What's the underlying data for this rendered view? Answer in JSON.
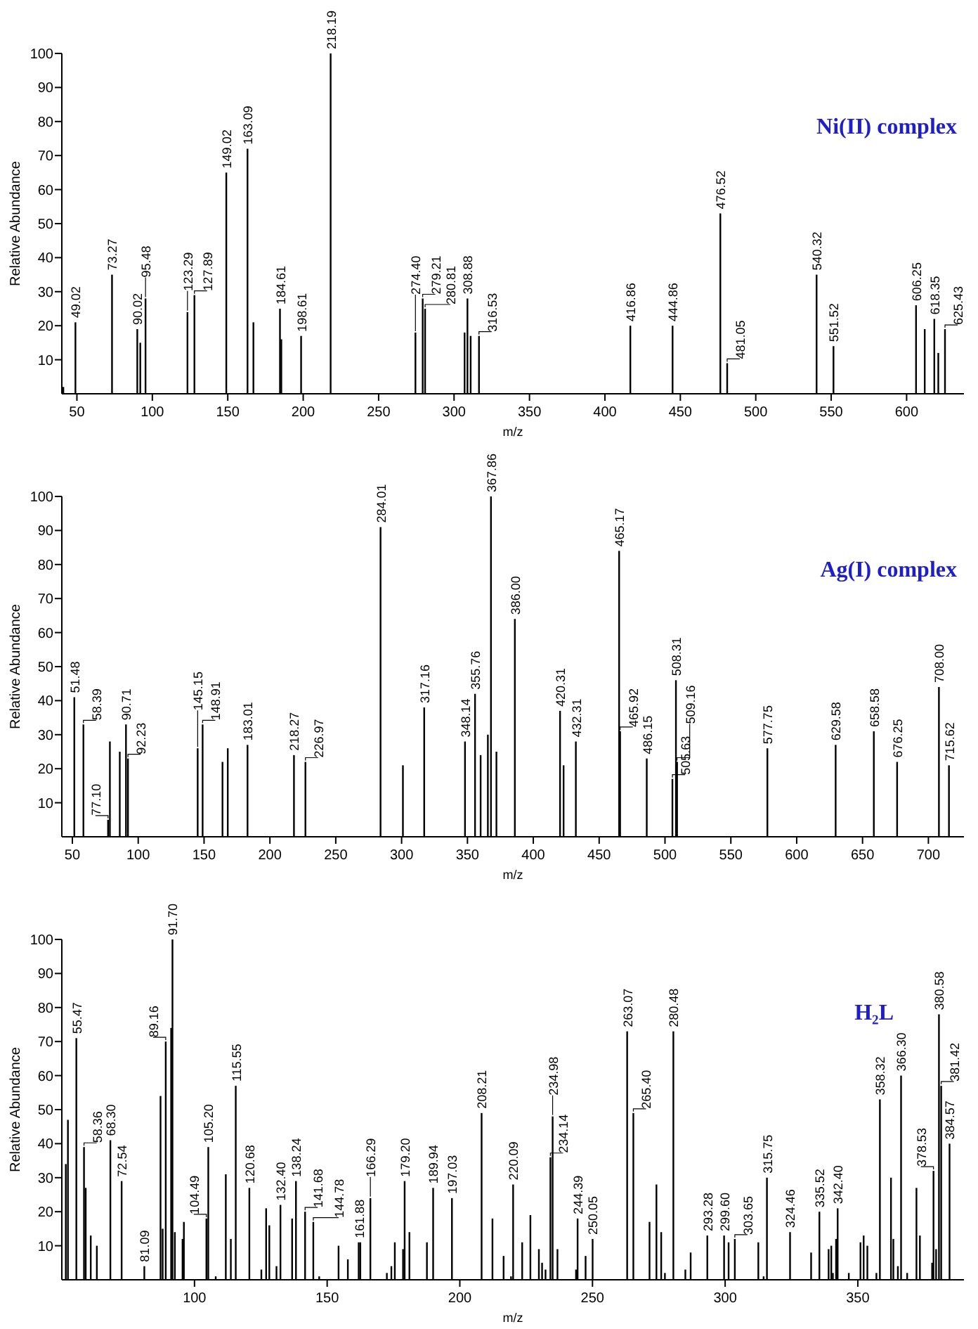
{
  "chart_data": [
    {
      "type": "bar",
      "title": "Ni(II) complex",
      "xlabel": "m/z",
      "ylabel": "Relative Abundance",
      "color": "#000000",
      "xlim": [
        40,
        638
      ],
      "xticks": [
        50,
        100,
        150,
        200,
        250,
        300,
        350,
        400,
        450,
        500,
        550,
        600
      ],
      "ylim": [
        0,
        100
      ],
      "yticks": [
        10,
        20,
        30,
        40,
        50,
        60,
        70,
        80,
        90,
        100
      ],
      "x": [
        41,
        49.02,
        73.27,
        90.02,
        92,
        95.48,
        123.29,
        127.89,
        149.02,
        163.09,
        167,
        184.61,
        185.5,
        198.61,
        218.19,
        274.4,
        279.21,
        280.81,
        307,
        308.88,
        311,
        316.53,
        416.86,
        444.86,
        476.52,
        481.05,
        540.32,
        551.52,
        606.25,
        612,
        618.35,
        621,
        625.43
      ],
      "values": [
        2,
        21,
        35,
        19,
        15,
        28,
        24,
        29,
        65,
        72,
        21,
        25,
        16,
        17,
        100,
        18,
        28,
        25,
        18,
        28,
        17,
        17,
        20,
        20,
        53,
        9,
        35,
        14,
        26,
        19,
        22,
        12,
        19
      ],
      "annotations": [
        {
          "text": "49.02",
          "x": 49.02,
          "y": 21
        },
        {
          "text": "73.27",
          "x": 73.27,
          "y": 35
        },
        {
          "text": "90.02",
          "x": 90.02,
          "y": 19
        },
        {
          "text": "95.48",
          "x": 95.48,
          "y": 28
        },
        {
          "text": "123.29",
          "x": 123.29,
          "y": 24
        },
        {
          "text": "127.89",
          "x": 127.89,
          "y": 29
        },
        {
          "text": "149.02",
          "x": 149.02,
          "y": 65
        },
        {
          "text": "163.09",
          "x": 163.09,
          "y": 72
        },
        {
          "text": "184.61",
          "x": 184.61,
          "y": 25
        },
        {
          "text": "198.61",
          "x": 198.61,
          "y": 17
        },
        {
          "text": "218.19",
          "x": 218.19,
          "y": 100
        },
        {
          "text": "274.40",
          "x": 274.4,
          "y": 18
        },
        {
          "text": "279.21",
          "x": 279.21,
          "y": 28
        },
        {
          "text": "280.81",
          "x": 280.81,
          "y": 25
        },
        {
          "text": "308.88",
          "x": 308.88,
          "y": 28
        },
        {
          "text": "316.53",
          "x": 316.53,
          "y": 17
        },
        {
          "text": "416.86",
          "x": 416.86,
          "y": 20
        },
        {
          "text": "444.86",
          "x": 444.86,
          "y": 20
        },
        {
          "text": "476.52",
          "x": 476.52,
          "y": 53
        },
        {
          "text": "481.05",
          "x": 481.05,
          "y": 9
        },
        {
          "text": "540.32",
          "x": 540.32,
          "y": 35
        },
        {
          "text": "551.52",
          "x": 551.52,
          "y": 14
        },
        {
          "text": "606.25",
          "x": 606.25,
          "y": 26
        },
        {
          "text": "618.35",
          "x": 618.35,
          "y": 22
        },
        {
          "text": "625.43",
          "x": 625.43,
          "y": 19
        }
      ]
    },
    {
      "type": "bar",
      "title": "Ag(I) complex",
      "xlabel": "m/z",
      "ylabel": "Relative Abundance",
      "color": "#000000",
      "xlim": [
        42,
        727
      ],
      "xticks": [
        50,
        100,
        150,
        200,
        250,
        300,
        350,
        400,
        450,
        500,
        550,
        600,
        650,
        700
      ],
      "ylim": [
        0,
        100
      ],
      "yticks": [
        10,
        20,
        30,
        40,
        50,
        60,
        70,
        80,
        90,
        100
      ],
      "x": [
        51.48,
        58.39,
        77.1,
        78.5,
        86,
        90.71,
        92.23,
        145.15,
        148.91,
        164,
        168,
        183.01,
        218.27,
        226.97,
        284.01,
        301,
        317.16,
        348.14,
        355.76,
        360,
        365.5,
        367.86,
        372,
        386,
        420.31,
        423,
        432.31,
        465.17,
        465.92,
        486.15,
        505.63,
        508.31,
        509.16,
        577.75,
        629.58,
        658.58,
        676.25,
        708,
        715.62
      ],
      "values": [
        41,
        33,
        5,
        28,
        25,
        33,
        23,
        26,
        33,
        22,
        26,
        27,
        24,
        22,
        91,
        21,
        38,
        28,
        42,
        24,
        30,
        100,
        25,
        64,
        37,
        21,
        28,
        84,
        31,
        23,
        17,
        46,
        22,
        26,
        27,
        31,
        22,
        44,
        21
      ],
      "annotations": [
        {
          "text": "51.48",
          "x": 51.48,
          "y": 41
        },
        {
          "text": "58.39",
          "x": 58.39,
          "y": 33
        },
        {
          "text": "77.10",
          "x": 77.1,
          "y": 5
        },
        {
          "text": "90.71",
          "x": 90.71,
          "y": 33
        },
        {
          "text": "92.23",
          "x": 92.23,
          "y": 23
        },
        {
          "text": "145.15",
          "x": 145.15,
          "y": 26
        },
        {
          "text": "148.91",
          "x": 148.91,
          "y": 33
        },
        {
          "text": "183.01",
          "x": 183.01,
          "y": 27
        },
        {
          "text": "218.27",
          "x": 218.27,
          "y": 24
        },
        {
          "text": "226.97",
          "x": 226.97,
          "y": 22
        },
        {
          "text": "284.01",
          "x": 284.01,
          "y": 91
        },
        {
          "text": "317.16",
          "x": 317.16,
          "y": 38
        },
        {
          "text": "348.14",
          "x": 348.14,
          "y": 28
        },
        {
          "text": "355.76",
          "x": 355.76,
          "y": 42
        },
        {
          "text": "367.86",
          "x": 367.86,
          "y": 100
        },
        {
          "text": "386.00",
          "x": 386,
          "y": 64
        },
        {
          "text": "420.31",
          "x": 420.31,
          "y": 37
        },
        {
          "text": "432.31",
          "x": 432.31,
          "y": 28
        },
        {
          "text": "465.17",
          "x": 465.17,
          "y": 84
        },
        {
          "text": "465.92",
          "x": 465.92,
          "y": 31
        },
        {
          "text": "486.15",
          "x": 486.15,
          "y": 23
        },
        {
          "text": "505.63",
          "x": 505.63,
          "y": 17
        },
        {
          "text": "508.31",
          "x": 508.31,
          "y": 46
        },
        {
          "text": "509.16",
          "x": 509.16,
          "y": 22
        },
        {
          "text": "577.75",
          "x": 577.75,
          "y": 26
        },
        {
          "text": "629.58",
          "x": 629.58,
          "y": 27
        },
        {
          "text": "658.58",
          "x": 658.58,
          "y": 31
        },
        {
          "text": "676.25",
          "x": 676.25,
          "y": 22
        },
        {
          "text": "708.00",
          "x": 708,
          "y": 44
        },
        {
          "text": "715.62",
          "x": 715.62,
          "y": 21
        }
      ]
    },
    {
      "type": "bar",
      "title": "H₂L",
      "xlabel": "m/z",
      "ylabel": "Relative Abundance",
      "color": "#000000",
      "xlim": [
        50,
        390
      ],
      "xticks": [
        100,
        150,
        200,
        250,
        300,
        350
      ],
      "ylim": [
        0,
        100
      ],
      "yticks": [
        10,
        20,
        30,
        40,
        50,
        60,
        70,
        80,
        90,
        100
      ],
      "x": [
        51.5,
        52.3,
        55.47,
        58.36,
        59,
        60.9,
        63.2,
        68.3,
        72.54,
        81.09,
        87.2,
        88,
        89.16,
        91.2,
        91.7,
        92.6,
        95.5,
        96,
        104.49,
        105.2,
        108,
        111.8,
        113.7,
        115.55,
        120.68,
        125.2,
        127,
        128.2,
        130.9,
        132.4,
        136.8,
        138.24,
        141.68,
        144.78,
        147,
        154.3,
        157.8,
        161.88,
        162.5,
        166.29,
        172.5,
        174.2,
        175.5,
        178.6,
        179.2,
        181,
        187.6,
        189.94,
        197.03,
        208.21,
        212.3,
        216.5,
        219.3,
        220.09,
        223.5,
        226.6,
        229.8,
        231,
        232.3,
        234.14,
        234.98,
        236.8,
        243.8,
        244.39,
        247.4,
        250.05,
        263.07,
        265.4,
        271.5,
        274.1,
        275.9,
        277.3,
        280.48,
        285,
        287,
        293.28,
        299.6,
        301.3,
        303.65,
        312.5,
        314.5,
        315.75,
        324.46,
        332.4,
        335.52,
        339,
        340,
        340.6,
        341.8,
        342.4,
        346.6,
        351,
        352.2,
        353.6,
        357,
        358.32,
        362.5,
        363.4,
        365.1,
        366.3,
        368.6,
        372.1,
        373.4,
        378,
        378.53,
        379.5,
        380.58,
        381.42,
        384.57
      ],
      "values": [
        34,
        47,
        71,
        39,
        27,
        13,
        10,
        41,
        29,
        4,
        54,
        15,
        70,
        74,
        100,
        14,
        12,
        17,
        18,
        39,
        1,
        31,
        12,
        57,
        27,
        3,
        21,
        16,
        4,
        22,
        18,
        29,
        20,
        17,
        1,
        10,
        6,
        11,
        11,
        24,
        2,
        4,
        11,
        9,
        29,
        14,
        11,
        27,
        24,
        49,
        18,
        7,
        1,
        28,
        11,
        19,
        9,
        5,
        3,
        36,
        48,
        9,
        3,
        18,
        7,
        12,
        73,
        49,
        17,
        28,
        14,
        2,
        73,
        3,
        8,
        13,
        13,
        11,
        12,
        11,
        1,
        30,
        14,
        8,
        20,
        9,
        10,
        2,
        12,
        21,
        2,
        11,
        13,
        10,
        2,
        53,
        30,
        12,
        4,
        60,
        2,
        27,
        13,
        5,
        32,
        9,
        78,
        57,
        40
      ],
      "annotations": [
        {
          "text": "55.47",
          "x": 55.47,
          "y": 71
        },
        {
          "text": "58.36",
          "x": 58.36,
          "y": 39
        },
        {
          "text": "68.30",
          "x": 68.3,
          "y": 41
        },
        {
          "text": "72.54",
          "x": 72.54,
          "y": 29
        },
        {
          "text": "81.09",
          "x": 81.09,
          "y": 4
        },
        {
          "text": "89.16",
          "x": 89.16,
          "y": 70
        },
        {
          "text": "91.70",
          "x": 91.7,
          "y": 100
        },
        {
          "text": "104.49",
          "x": 104.49,
          "y": 18
        },
        {
          "text": "105.20",
          "x": 105.2,
          "y": 39
        },
        {
          "text": "115.55",
          "x": 115.55,
          "y": 57
        },
        {
          "text": "120.68",
          "x": 120.68,
          "y": 27
        },
        {
          "text": "132.40",
          "x": 132.4,
          "y": 22
        },
        {
          "text": "138.24",
          "x": 138.24,
          "y": 29
        },
        {
          "text": "141.68",
          "x": 141.68,
          "y": 20
        },
        {
          "text": "144.78",
          "x": 144.78,
          "y": 17
        },
        {
          "text": "161.88",
          "x": 161.88,
          "y": 11
        },
        {
          "text": "166.29",
          "x": 166.29,
          "y": 24
        },
        {
          "text": "179.20",
          "x": 179.2,
          "y": 29
        },
        {
          "text": "189.94",
          "x": 189.94,
          "y": 27
        },
        {
          "text": "197.03",
          "x": 197.03,
          "y": 24
        },
        {
          "text": "208.21",
          "x": 208.21,
          "y": 49
        },
        {
          "text": "220.09",
          "x": 220.09,
          "y": 28
        },
        {
          "text": "234.14",
          "x": 234.14,
          "y": 36
        },
        {
          "text": "234.98",
          "x": 234.98,
          "y": 48
        },
        {
          "text": "244.39",
          "x": 244.39,
          "y": 18
        },
        {
          "text": "250.05",
          "x": 250.05,
          "y": 12
        },
        {
          "text": "263.07",
          "x": 263.07,
          "y": 73
        },
        {
          "text": "265.40",
          "x": 265.4,
          "y": 49
        },
        {
          "text": "280.48",
          "x": 280.48,
          "y": 73
        },
        {
          "text": "293.28",
          "x": 293.28,
          "y": 13
        },
        {
          "text": "299.60",
          "x": 299.6,
          "y": 13
        },
        {
          "text": "303.65",
          "x": 303.65,
          "y": 12
        },
        {
          "text": "315.75",
          "x": 315.75,
          "y": 30
        },
        {
          "text": "324.46",
          "x": 324.46,
          "y": 14
        },
        {
          "text": "335.52",
          "x": 335.52,
          "y": 20
        },
        {
          "text": "342.40",
          "x": 342.4,
          "y": 21
        },
        {
          "text": "358.32",
          "x": 358.32,
          "y": 53
        },
        {
          "text": "366.30",
          "x": 366.3,
          "y": 60
        },
        {
          "text": "378.53",
          "x": 378.53,
          "y": 32
        },
        {
          "text": "380.58",
          "x": 380.58,
          "y": 78
        },
        {
          "text": "381.42",
          "x": 381.42,
          "y": 57
        },
        {
          "text": "384.57",
          "x": 384.57,
          "y": 40
        }
      ]
    }
  ]
}
